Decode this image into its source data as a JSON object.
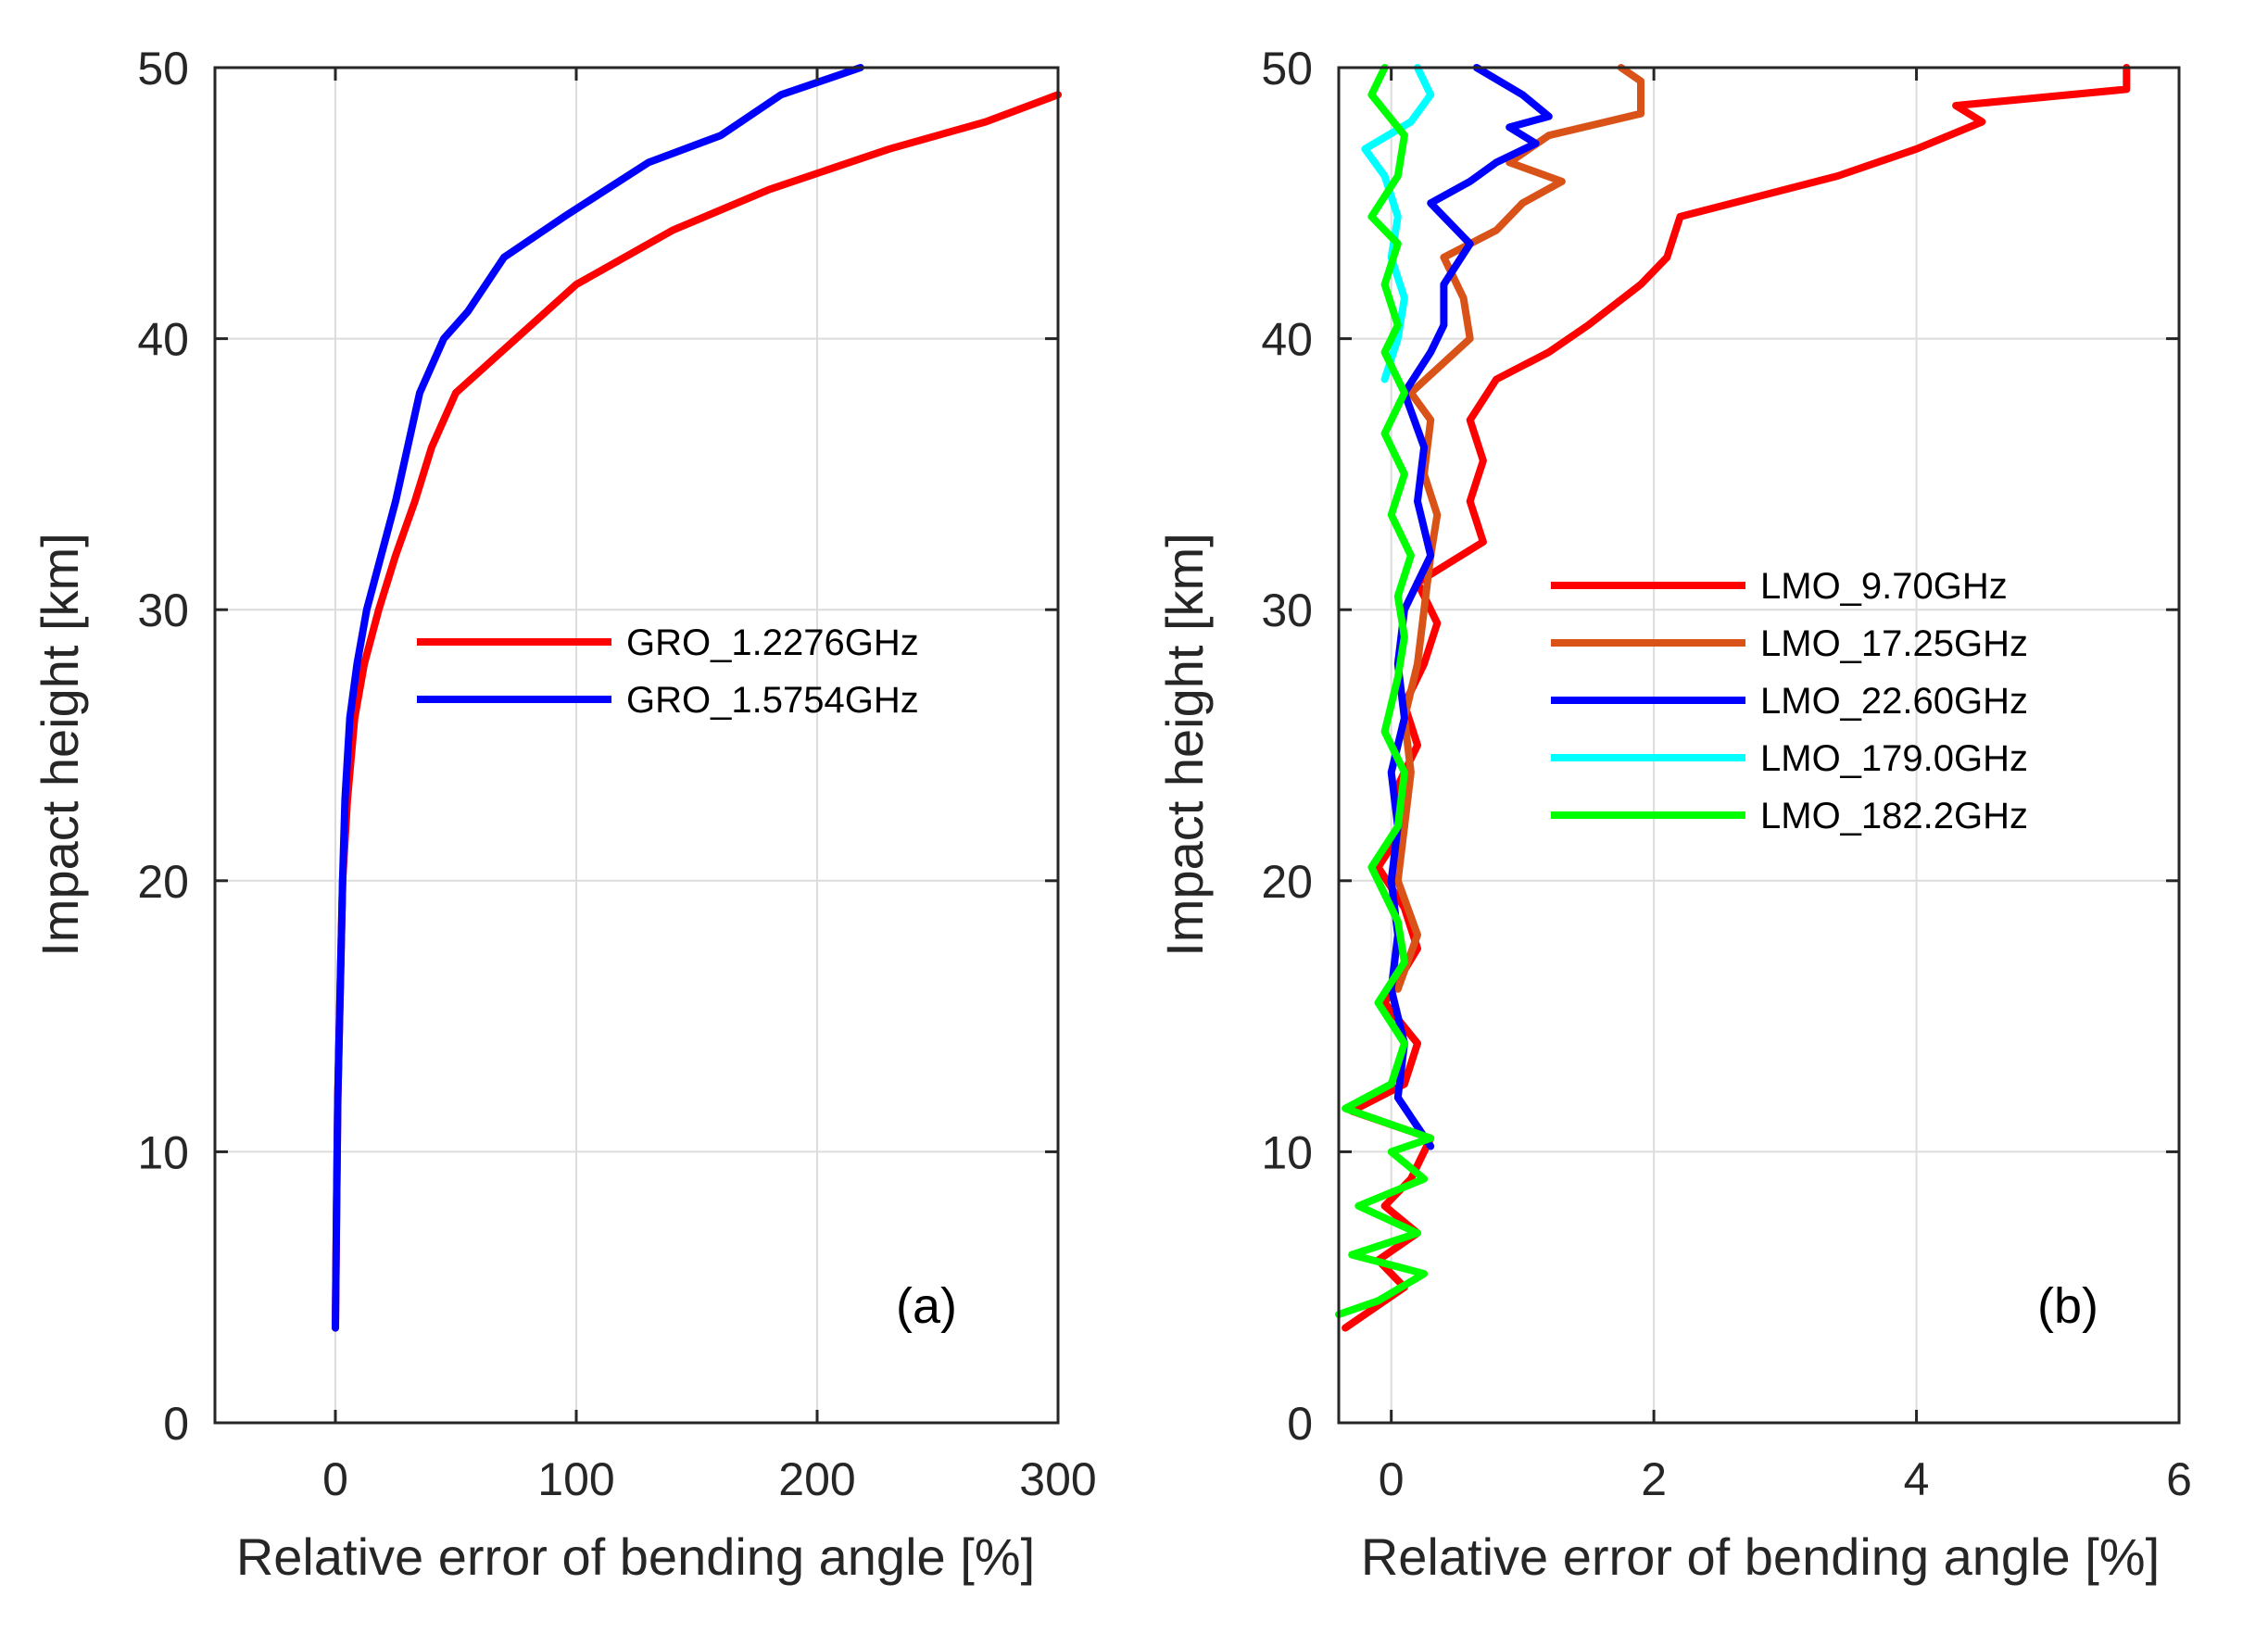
{
  "chart_data": [
    {
      "type": "line",
      "panel": "(a)",
      "xlabel": "Relative error of bending angle [%]",
      "ylabel": "Impact height [km]",
      "xlim": [
        -50,
        300
      ],
      "ylim": [
        0,
        50
      ],
      "xticks": [
        0,
        100,
        200,
        300
      ],
      "yticks": [
        0,
        10,
        20,
        30,
        40,
        50
      ],
      "grid": true,
      "legend_position": "center-right",
      "series": [
        {
          "name": "GRO_1.2276GHz",
          "color": "#ff0000",
          "points": [
            [
              0,
              3.5
            ],
            [
              0.5,
              8
            ],
            [
              1,
              12
            ],
            [
              2,
              16
            ],
            [
              3,
              20
            ],
            [
              5,
              23
            ],
            [
              8,
              26
            ],
            [
              12,
              28
            ],
            [
              18,
              30
            ],
            [
              25,
              32
            ],
            [
              33,
              34
            ],
            [
              40,
              36
            ],
            [
              50,
              38
            ],
            [
              75,
              40
            ],
            [
              100,
              42
            ],
            [
              140,
              44
            ],
            [
              180,
              45.5
            ],
            [
              230,
              47
            ],
            [
              270,
              48
            ],
            [
              300,
              49
            ]
          ]
        },
        {
          "name": "GRO_1.5754GHz",
          "color": "#0000ff",
          "points": [
            [
              0,
              3.5
            ],
            [
              0.5,
              8
            ],
            [
              1,
              12
            ],
            [
              2,
              16
            ],
            [
              3,
              20
            ],
            [
              4,
              23
            ],
            [
              6,
              26
            ],
            [
              9,
              28
            ],
            [
              13,
              30
            ],
            [
              19,
              32
            ],
            [
              25,
              34
            ],
            [
              30,
              36
            ],
            [
              35,
              38
            ],
            [
              45,
              40
            ],
            [
              55,
              41
            ],
            [
              70,
              43
            ],
            [
              95,
              44.5
            ],
            [
              130,
              46.5
            ],
            [
              160,
              47.5
            ],
            [
              185,
              49
            ],
            [
              218,
              50
            ]
          ]
        }
      ]
    },
    {
      "type": "line",
      "panel": "(b)",
      "xlabel": "Relative error of bending angle [%]",
      "ylabel": "Impact height [km]",
      "xlim": [
        -0.4,
        6
      ],
      "ylim": [
        0,
        50
      ],
      "xticks": [
        0,
        2,
        4,
        6
      ],
      "yticks": [
        0,
        10,
        20,
        30,
        40,
        50
      ],
      "grid": true,
      "legend_position": "center-right",
      "series": [
        {
          "name": "LMO_9.70GHz",
          "color": "#ff0000",
          "points": [
            [
              -0.35,
              3.5
            ],
            [
              0.1,
              5
            ],
            [
              -0.1,
              6
            ],
            [
              0.2,
              7
            ],
            [
              -0.05,
              8
            ],
            [
              0.15,
              9
            ],
            [
              0.3,
              10.5
            ],
            [
              -0.3,
              11.5
            ],
            [
              0.1,
              12.5
            ],
            [
              0.2,
              14
            ],
            [
              -0.05,
              15.5
            ],
            [
              0.2,
              17.5
            ],
            [
              0.1,
              19
            ],
            [
              -0.1,
              20.5
            ],
            [
              0.1,
              22
            ],
            [
              0.05,
              23.5
            ],
            [
              0.2,
              25
            ],
            [
              0.1,
              26.5
            ],
            [
              0.25,
              28
            ],
            [
              0.35,
              29.5
            ],
            [
              0.2,
              31
            ],
            [
              0.7,
              32.5
            ],
            [
              0.6,
              34
            ],
            [
              0.7,
              35.5
            ],
            [
              0.6,
              37
            ],
            [
              0.8,
              38.5
            ],
            [
              1.2,
              39.5
            ],
            [
              1.5,
              40.5
            ],
            [
              1.9,
              42
            ],
            [
              2.1,
              43
            ],
            [
              2.2,
              44.5
            ],
            [
              3.4,
              46
            ],
            [
              4.0,
              47
            ],
            [
              4.5,
              48
            ],
            [
              4.3,
              48.6
            ],
            [
              5.6,
              49.2
            ],
            [
              5.6,
              50
            ]
          ]
        },
        {
          "name": "LMO_17.25GHz",
          "color": "#d95319",
          "points": [
            [
              0.05,
              16
            ],
            [
              0.2,
              18
            ],
            [
              0.05,
              20
            ],
            [
              0.1,
              22
            ],
            [
              0.15,
              24
            ],
            [
              0.1,
              26
            ],
            [
              0.2,
              28
            ],
            [
              0.25,
              30
            ],
            [
              0.3,
              32
            ],
            [
              0.35,
              33.5
            ],
            [
              0.25,
              35
            ],
            [
              0.3,
              37
            ],
            [
              0.15,
              38
            ],
            [
              0.6,
              40
            ],
            [
              0.55,
              41.5
            ],
            [
              0.4,
              43
            ],
            [
              0.8,
              44
            ],
            [
              1.0,
              45
            ],
            [
              1.3,
              45.8
            ],
            [
              0.9,
              46.5
            ],
            [
              1.2,
              47.5
            ],
            [
              1.9,
              48.3
            ],
            [
              1.9,
              49.5
            ],
            [
              1.75,
              50
            ]
          ]
        },
        {
          "name": "LMO_22.60GHz",
          "color": "#0000ff",
          "points": [
            [
              0.3,
              10.2
            ],
            [
              0.05,
              12
            ],
            [
              0.1,
              14
            ],
            [
              0.0,
              16
            ],
            [
              0.05,
              18
            ],
            [
              0.0,
              20
            ],
            [
              0.05,
              22
            ],
            [
              0.0,
              24
            ],
            [
              0.1,
              26
            ],
            [
              0.05,
              28
            ],
            [
              0.1,
              30
            ],
            [
              0.3,
              32
            ],
            [
              0.2,
              34
            ],
            [
              0.25,
              36
            ],
            [
              0.1,
              38
            ],
            [
              0.3,
              39.5
            ],
            [
              0.4,
              40.5
            ],
            [
              0.4,
              42
            ],
            [
              0.6,
              43.5
            ],
            [
              0.3,
              45
            ],
            [
              0.6,
              45.8
            ],
            [
              0.8,
              46.5
            ],
            [
              1.1,
              47.2
            ],
            [
              0.9,
              47.8
            ],
            [
              1.2,
              48.2
            ],
            [
              1.0,
              49
            ],
            [
              0.65,
              50
            ]
          ]
        },
        {
          "name": "LMO_179.0GHz",
          "color": "#00ffff",
          "points": [
            [
              -0.05,
              38.5
            ],
            [
              0.05,
              40
            ],
            [
              0.1,
              41.5
            ],
            [
              0.0,
              43
            ],
            [
              0.05,
              44.5
            ],
            [
              -0.05,
              46
            ],
            [
              -0.2,
              47
            ],
            [
              0.15,
              48
            ],
            [
              0.3,
              49
            ],
            [
              0.2,
              50
            ]
          ]
        },
        {
          "name": "LMO_182.2GHz",
          "color": "#00ff00",
          "points": [
            [
              -0.4,
              4
            ],
            [
              -0.1,
              4.5
            ],
            [
              0.25,
              5.5
            ],
            [
              -0.3,
              6.2
            ],
            [
              0.2,
              7
            ],
            [
              -0.25,
              8
            ],
            [
              0.25,
              9
            ],
            [
              0.0,
              10
            ],
            [
              0.3,
              10.5
            ],
            [
              -0.35,
              11.6
            ],
            [
              0.0,
              12.5
            ],
            [
              0.1,
              14
            ],
            [
              -0.1,
              15.5
            ],
            [
              0.1,
              17
            ],
            [
              0.05,
              18.5
            ],
            [
              -0.15,
              20.5
            ],
            [
              0.05,
              22
            ],
            [
              0.1,
              24
            ],
            [
              -0.05,
              25.5
            ],
            [
              0.05,
              27.5
            ],
            [
              0.1,
              29
            ],
            [
              0.05,
              30.5
            ],
            [
              0.15,
              32
            ],
            [
              0.0,
              33.5
            ],
            [
              0.1,
              35
            ],
            [
              -0.05,
              36.5
            ],
            [
              0.1,
              38
            ],
            [
              -0.05,
              39.5
            ],
            [
              0.05,
              40.5
            ],
            [
              -0.05,
              42
            ],
            [
              0.05,
              43.5
            ],
            [
              -0.15,
              44.5
            ],
            [
              0.05,
              46
            ],
            [
              0.1,
              47.5
            ],
            [
              -0.15,
              49
            ],
            [
              -0.05,
              50
            ]
          ]
        }
      ]
    }
  ]
}
